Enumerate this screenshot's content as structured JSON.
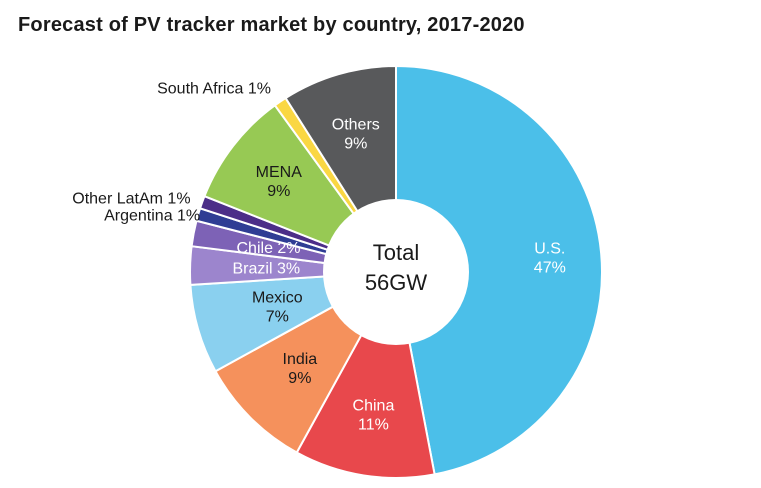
{
  "title": "Forecast of PV tracker market by country, 2017-2020",
  "center": {
    "line1": "Total",
    "line2": "56GW"
  },
  "chart_data": {
    "type": "pie",
    "subtype": "donut",
    "title": "Forecast of PV tracker market by country, 2017-2020",
    "unit": "%",
    "total_label": "Total 56GW",
    "total_value_gw": 56,
    "start_angle_deg": 0,
    "direction": "clockwise",
    "slices": [
      {
        "label": "U.S.",
        "value": 47,
        "color": "#4BBFE9",
        "text_color": "#ffffff",
        "label_lines": [
          "U.S.",
          "47%"
        ],
        "label_r": 0.75,
        "outside": false
      },
      {
        "label": "China",
        "value": 11,
        "color": "#E8484C",
        "text_color": "#ffffff",
        "label_lines": [
          "China",
          "11%"
        ],
        "label_r": 0.7,
        "outside": false
      },
      {
        "label": "India",
        "value": 9,
        "color": "#F5915C",
        "text_color": "#1a1a1a",
        "label_lines": [
          "India",
          "9%"
        ],
        "label_r": 0.66,
        "outside": false
      },
      {
        "label": "Mexico",
        "value": 7,
        "color": "#8AD0EF",
        "text_color": "#1a1a1a",
        "label_lines": [
          "Mexico",
          "7%"
        ],
        "label_r": 0.6,
        "outside": false
      },
      {
        "label": "Brazil",
        "value": 3,
        "color": "#9C85CD",
        "text_color": "#ffffff",
        "label_lines": [
          "Brazil 3%"
        ],
        "label_r": 0.63,
        "outside": false
      },
      {
        "label": "Chile",
        "value": 2,
        "color": "#7D62B6",
        "text_color": "#ffffff",
        "label_lines": [
          "Chile  2%"
        ],
        "label_r": 0.63,
        "outside": false
      },
      {
        "label": "Argentina",
        "value": 1,
        "color": "#2F3D94",
        "text_color": "#1a1a1a",
        "label_lines": [
          "Argentina 1%"
        ],
        "label_r": 0.99,
        "outside": true
      },
      {
        "label": "Other LatAm",
        "value": 1,
        "color": "#4C2E88",
        "text_color": "#1a1a1a",
        "label_lines": [
          "Other LatAm 1%"
        ],
        "label_r": 1.06,
        "outside": true
      },
      {
        "label": "MENA",
        "value": 9,
        "color": "#97C954",
        "text_color": "#1a1a1a",
        "label_lines": [
          "MENA",
          "9%"
        ],
        "label_r": 0.72,
        "outside": false
      },
      {
        "label": "South Africa",
        "value": 1,
        "color": "#FAD743",
        "text_color": "#1a1a1a",
        "label_lines": [
          "South Africa 1%"
        ],
        "label_r": 1.08,
        "outside": true
      },
      {
        "label": "Others",
        "value": 9,
        "color": "#58595B",
        "text_color": "#ffffff",
        "label_lines": [
          "Others",
          "9%"
        ],
        "label_r": 0.7,
        "outside": false
      }
    ]
  }
}
